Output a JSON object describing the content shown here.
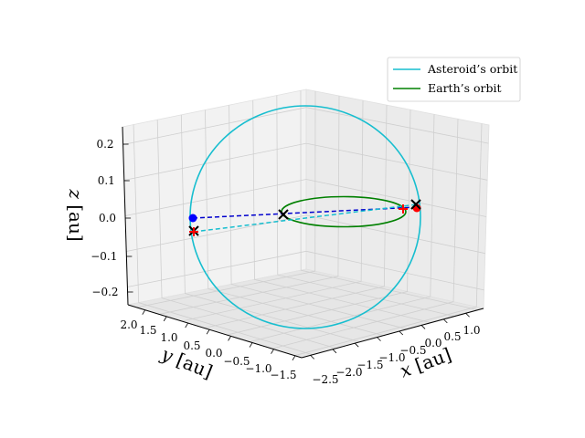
{
  "chart_data": {
    "type": "line-3d",
    "xlabel": "$x$ [au]",
    "ylabel": "$y$ [au]",
    "zlabel": "$z$ [au]",
    "x_ticks": [
      "−2.5",
      "−2.0",
      "−1.5",
      "−1.0",
      "−0.5",
      "0.0",
      "0.5",
      "1.0"
    ],
    "y_ticks": [
      "−1.5",
      "−1.0",
      "−0.5",
      "0.0",
      "0.5",
      "1.0",
      "1.5",
      "2.0"
    ],
    "z_ticks": [
      "−0.2",
      "−0.1",
      "0.0",
      "0.1",
      "0.2"
    ],
    "legend_position": "top-right",
    "series": [
      {
        "name": "Asteroid’s orbit",
        "color": "#17becf",
        "style": "solid"
      },
      {
        "name": "Earth’s orbit",
        "color": "#008000",
        "style": "solid"
      }
    ],
    "markers": [
      {
        "kind": "dot",
        "color": "#0000ff",
        "position": "asteroid, left"
      },
      {
        "kind": "dot",
        "color": "#ff0000",
        "position": "earth, right"
      },
      {
        "kind": "x",
        "color": "#000000",
        "position": "center (origin)"
      },
      {
        "kind": "x",
        "color": "#000000",
        "position": "right"
      },
      {
        "kind": "x",
        "color": "#000000",
        "position": "left, lower"
      },
      {
        "kind": "plus",
        "color": "#ff0000",
        "position": "right"
      },
      {
        "kind": "plus",
        "color": "#ff0000",
        "position": "left, lower"
      }
    ],
    "dashed_lines": [
      {
        "color": "#0000cd",
        "from": "asteroid dot",
        "to": "earth dot"
      },
      {
        "color": "#17becf",
        "from": "left lower marker",
        "to": "right marker"
      }
    ],
    "grid": true
  }
}
